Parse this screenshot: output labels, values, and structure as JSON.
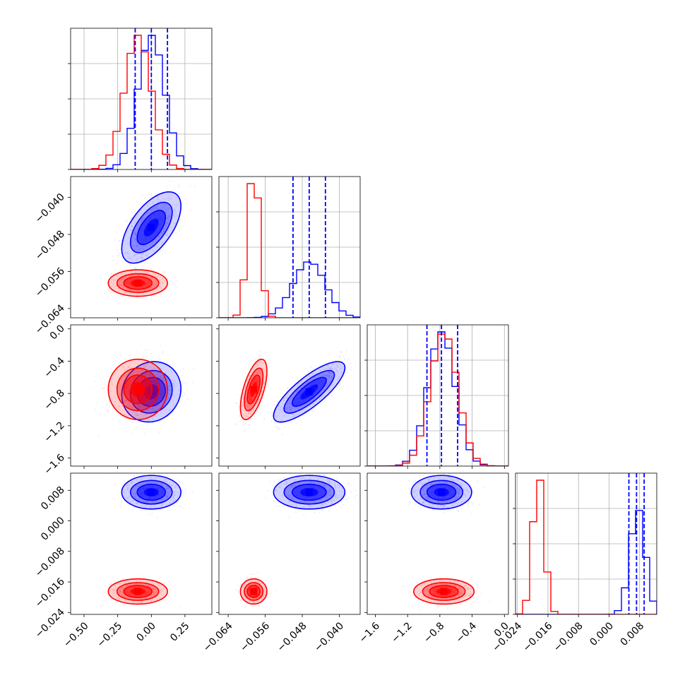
{
  "chart_data": {
    "type": "corner",
    "title": "",
    "grid": true,
    "colors": {
      "series_a": "#0000ff",
      "series_b": "#ff0000"
    },
    "series": [
      {
        "color": "#0000ff",
        "mean": [
          0.0,
          -0.0465,
          -0.78,
          0.0075
        ],
        "sd": [
          0.1,
          0.0035,
          0.17,
          0.002
        ],
        "corr": {
          "0-1": 0.6,
          "0-2": 0.1,
          "1-2": 0.8
        },
        "quantiles_shown": true
      },
      {
        "color": "#ff0000",
        "mean": [
          -0.1,
          -0.0585,
          -0.75,
          -0.0185
        ],
        "sd": [
          0.1,
          0.0013,
          0.17,
          0.0015
        ],
        "corr": {
          "0-1": 0.0,
          "0-2": 0.0,
          "1-2": 0.6
        },
        "quantiles_shown": false
      }
    ],
    "quantile_lines": [
      [
        -0.12,
        0.0,
        0.12
      ],
      [
        -0.05,
        -0.0465,
        -0.043
      ],
      [
        -0.96,
        -0.78,
        -0.58
      ],
      [
        0.0052,
        0.0072,
        0.0092
      ]
    ],
    "axes": [
      {
        "range": [
          -0.6,
          0.45
        ],
        "ticks": [
          -0.5,
          -0.25,
          0.0,
          0.25
        ],
        "tick_labels": [
          "−0.50",
          "−0.25",
          "0.00",
          "0.25"
        ]
      },
      {
        "range": [
          -0.066,
          -0.0355
        ],
        "ticks": [
          -0.064,
          -0.056,
          -0.048,
          -0.04
        ],
        "tick_labels": [
          "−0.064",
          "−0.056",
          "−0.048",
          "−0.040"
        ]
      },
      {
        "range": [
          -1.7,
          0.05
        ],
        "ticks": [
          -1.6,
          -1.2,
          -0.8,
          -0.4,
          0.0
        ],
        "tick_labels": [
          "−1.6",
          "−1.2",
          "−0.8",
          "−0.4",
          "0.0"
        ]
      },
      {
        "range": [
          -0.0245,
          0.0125
        ],
        "ticks": [
          -0.024,
          -0.016,
          -0.008,
          0.0,
          0.008
        ],
        "tick_labels": [
          "−0.024",
          "−0.016",
          "−0.008",
          "0.000",
          "0.008"
        ]
      }
    ]
  }
}
